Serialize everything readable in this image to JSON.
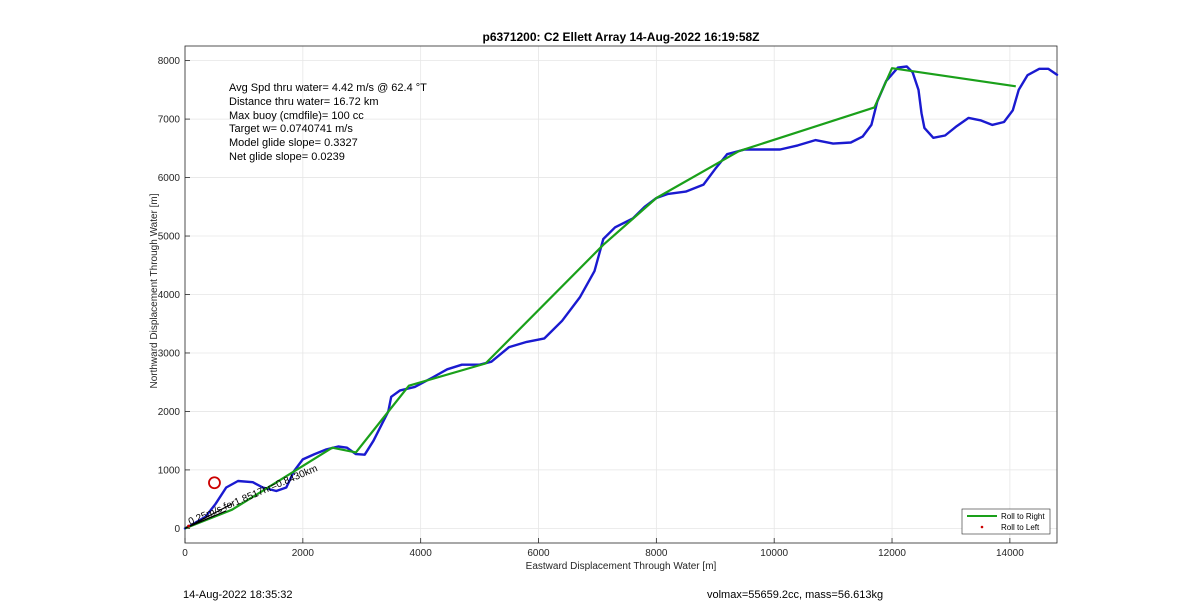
{
  "chart_data": {
    "type": "line",
    "title": "p6371200: C2 Ellett Array 14-Aug-2022 16:19:58Z",
    "xlabel": "Eastward Displacement Through Water [m]",
    "ylabel": "Northward Displacement Through Water [m]",
    "xlim": [
      0,
      14800
    ],
    "ylim": [
      -250,
      8250
    ],
    "xticks": [
      0,
      2000,
      4000,
      6000,
      8000,
      10000,
      12000,
      14000
    ],
    "yticks": [
      0,
      1000,
      2000,
      3000,
      4000,
      5000,
      6000,
      7000,
      8000
    ],
    "grid": true,
    "legend_position": "bottom-right",
    "stats": [
      "Avg Spd thru water=  4.42 m/s @  62.4 °T",
      "Distance thru water= 16.72 km",
      "Max buoy (cmdfile)= 100 cc",
      "Target w= 0.0740741 m/s",
      "Model glide slope= 0.3327",
      "Net glide slope= 0.0239"
    ],
    "annotation": "0.25m/s for1.8517hr=0.8430km",
    "marker": {
      "x": 500,
      "y": 780,
      "color": "#cc0000"
    },
    "series": [
      {
        "name": "Roll to Right",
        "color": "#1aa01a",
        "points": [
          [
            0,
            0
          ],
          [
            800,
            320
          ],
          [
            2500,
            1380
          ],
          [
            2900,
            1300
          ],
          [
            3800,
            2440
          ],
          [
            5100,
            2820
          ],
          [
            7100,
            4850
          ],
          [
            8000,
            5650
          ],
          [
            9400,
            6450
          ],
          [
            11700,
            7200
          ],
          [
            12000,
            7870
          ],
          [
            14100,
            7560
          ]
        ]
      },
      {
        "name": "Roll to Left",
        "color": "#cc0000",
        "points": [
          [
            60,
            40
          ]
        ]
      },
      {
        "name": "",
        "color": "#1a1ad0",
        "points": [
          [
            0,
            0
          ],
          [
            150,
            80
          ],
          [
            350,
            200
          ],
          [
            520,
            420
          ],
          [
            700,
            700
          ],
          [
            900,
            810
          ],
          [
            1150,
            790
          ],
          [
            1320,
            700
          ],
          [
            1550,
            640
          ],
          [
            1720,
            700
          ],
          [
            1850,
            980
          ],
          [
            2000,
            1180
          ],
          [
            2200,
            1270
          ],
          [
            2400,
            1350
          ],
          [
            2600,
            1400
          ],
          [
            2750,
            1380
          ],
          [
            2900,
            1270
          ],
          [
            3050,
            1260
          ],
          [
            3200,
            1500
          ],
          [
            3350,
            1800
          ],
          [
            3450,
            2000
          ],
          [
            3500,
            2250
          ],
          [
            3650,
            2360
          ],
          [
            3900,
            2420
          ],
          [
            4200,
            2580
          ],
          [
            4450,
            2720
          ],
          [
            4700,
            2800
          ],
          [
            5000,
            2800
          ],
          [
            5200,
            2850
          ],
          [
            5500,
            3100
          ],
          [
            5800,
            3190
          ],
          [
            6100,
            3250
          ],
          [
            6400,
            3550
          ],
          [
            6700,
            3950
          ],
          [
            6950,
            4400
          ],
          [
            7100,
            4950
          ],
          [
            7300,
            5150
          ],
          [
            7600,
            5300
          ],
          [
            7800,
            5500
          ],
          [
            8000,
            5650
          ],
          [
            8200,
            5720
          ],
          [
            8500,
            5760
          ],
          [
            8800,
            5880
          ],
          [
            9000,
            6150
          ],
          [
            9200,
            6400
          ],
          [
            9500,
            6480
          ],
          [
            9800,
            6480
          ],
          [
            10100,
            6480
          ],
          [
            10400,
            6550
          ],
          [
            10700,
            6640
          ],
          [
            11000,
            6580
          ],
          [
            11300,
            6600
          ],
          [
            11500,
            6700
          ],
          [
            11650,
            6900
          ],
          [
            11750,
            7300
          ],
          [
            11900,
            7650
          ],
          [
            12100,
            7880
          ],
          [
            12250,
            7900
          ],
          [
            12350,
            7800
          ],
          [
            12450,
            7500
          ],
          [
            12500,
            7100
          ],
          [
            12550,
            6850
          ],
          [
            12700,
            6680
          ],
          [
            12900,
            6720
          ],
          [
            13100,
            6880
          ],
          [
            13300,
            7020
          ],
          [
            13500,
            6980
          ],
          [
            13700,
            6900
          ],
          [
            13900,
            6950
          ],
          [
            14050,
            7150
          ],
          [
            14150,
            7500
          ],
          [
            14300,
            7750
          ],
          [
            14500,
            7860
          ],
          [
            14650,
            7860
          ],
          [
            14800,
            7760
          ]
        ]
      }
    ]
  },
  "footer": {
    "left": "14-Aug-2022 18:35:32",
    "right": "volmax=55659.2cc, mass=56.613kg"
  }
}
